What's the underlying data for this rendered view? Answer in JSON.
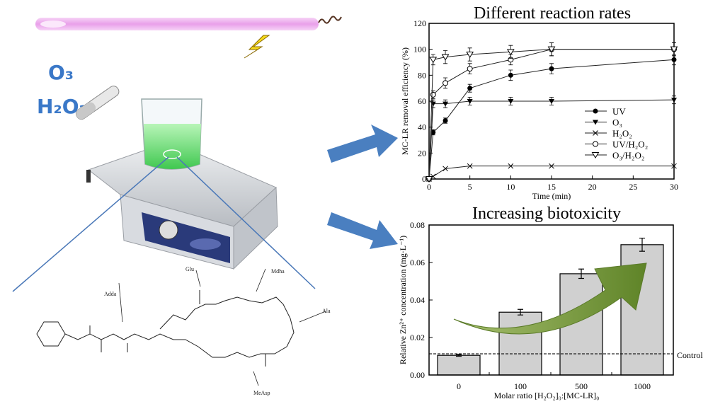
{
  "illustration": {
    "reagents": [
      "O₃",
      "H₂O₂"
    ],
    "molecule_labels": [
      "Glu",
      "Mdha",
      "Adda",
      "Ala",
      "MeAsp"
    ],
    "colors": {
      "reagent_text": "#3a78c8",
      "arrow": "#4a7fc0",
      "lamp": "#f2b8f0",
      "bolt": "#f5d91a"
    }
  },
  "chart_data": [
    {
      "type": "line",
      "title": "Different reaction rates",
      "xlabel": "Time (min)",
      "ylabel": "MC-LR removal efficiency (%)",
      "xlim": [
        0,
        30
      ],
      "ylim": [
        0,
        120
      ],
      "xticks": [
        "0",
        "5",
        "10",
        "15",
        "20",
        "25",
        "30"
      ],
      "yticks": [
        "0",
        "20",
        "40",
        "60",
        "80",
        "100",
        "120"
      ],
      "legend_position": "bottom-right",
      "x": [
        0,
        0.5,
        2,
        5,
        10,
        15,
        30
      ],
      "series": [
        {
          "name": "UV",
          "marker": "filled-circle",
          "values": [
            0,
            36,
            45,
            70,
            80,
            85,
            92
          ],
          "error": [
            0,
            2,
            2,
            3,
            4,
            4,
            4
          ]
        },
        {
          "name": "O₃",
          "marker": "filled-triangle-down",
          "values": [
            0,
            58,
            58,
            60,
            60,
            60,
            61
          ],
          "error": [
            0,
            3,
            3,
            3,
            3,
            3,
            3
          ]
        },
        {
          "name": "H₂O₂",
          "marker": "cross",
          "values": [
            0,
            2,
            8,
            10,
            10,
            10,
            10
          ],
          "error": [
            0,
            0,
            0,
            0,
            0,
            0,
            0
          ]
        },
        {
          "name": "UV/H₂O₂",
          "marker": "open-circle",
          "values": [
            0,
            65,
            74,
            85,
            92,
            100,
            100
          ],
          "error": [
            0,
            3,
            4,
            4,
            4,
            5,
            5
          ]
        },
        {
          "name": "O₃/H₂O₂",
          "marker": "open-triangle-down",
          "values": [
            0,
            92,
            94,
            96,
            98,
            100,
            100
          ],
          "error": [
            0,
            4,
            5,
            5,
            5,
            5,
            5
          ]
        }
      ]
    },
    {
      "type": "bar",
      "title": "Increasing biotoxicity",
      "xlabel": "Molar ratio [H₂O₂]₀:[MC-LR]₀",
      "ylabel": "Relative Zn²⁺ concentration (mg·L⁻¹)",
      "categories": [
        "0",
        "100",
        "500",
        "1000"
      ],
      "values": [
        0.0105,
        0.0335,
        0.054,
        0.0695
      ],
      "error": [
        0.0005,
        0.0015,
        0.0025,
        0.0035
      ],
      "ylim": [
        0,
        0.08
      ],
      "yticks": [
        "0.00",
        "0.02",
        "0.04",
        "0.06",
        "0.08"
      ],
      "reference_line": {
        "label": "Control",
        "value": 0.0113
      },
      "colors": {
        "bar": "#d0d0d0",
        "trend_arrow": "#6f9232"
      }
    }
  ]
}
